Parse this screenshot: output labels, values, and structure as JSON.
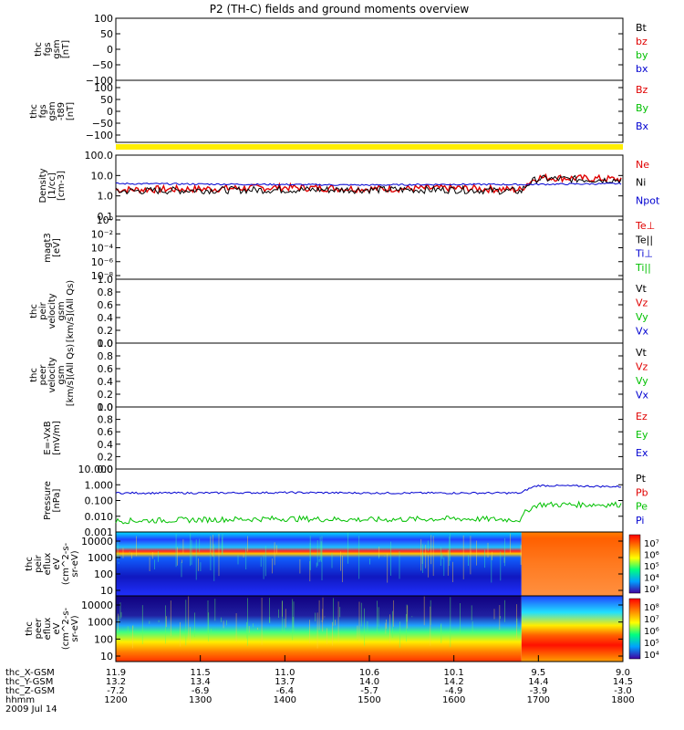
{
  "title": "P2 (TH-C) fields and ground moments overview",
  "date_label": "2009 Jul 14",
  "time_axis": {
    "row_labels": [
      "thc_X-GSM",
      "thc_Y-GSM",
      "thc_Z-GSM",
      "hhmm"
    ],
    "columns": [
      {
        "x": "11.9",
        "y": "13.2",
        "z": "-7.2",
        "t": "1200"
      },
      {
        "x": "11.5",
        "y": "13.4",
        "z": "-6.9",
        "t": "1300"
      },
      {
        "x": "11.0",
        "y": "13.7",
        "z": "-6.4",
        "t": "1400"
      },
      {
        "x": "10.6",
        "y": "14.0",
        "z": "-5.7",
        "t": "1500"
      },
      {
        "x": "10.1",
        "y": "14.2",
        "z": "-4.9",
        "t": "1600"
      },
      {
        "x": "9.5",
        "y": "14.4",
        "z": "-3.9",
        "t": "1700"
      },
      {
        "x": "9.0",
        "y": "14.5",
        "z": "-3.0",
        "t": "1800"
      }
    ],
    "start_hhmm": "1200",
    "end_hhmm": "1800"
  },
  "panels": [
    {
      "id": "fgs",
      "ylabel": [
        "thc",
        "fgs",
        "gsm",
        "[nT]"
      ],
      "ticks": [
        "100",
        "50",
        "0",
        "−50",
        "−100"
      ],
      "ylim": [
        -100,
        100
      ],
      "legend": [
        {
          "text": "Bt",
          "color": "#000000"
        },
        {
          "text": "bz",
          "color": "#e00000"
        },
        {
          "text": "by",
          "color": "#00c000"
        },
        {
          "text": "bx",
          "color": "#0000d0"
        }
      ]
    },
    {
      "id": "t89",
      "ylabel": [
        "thc",
        "fgs",
        "gsm",
        "-t89",
        "[nT]"
      ],
      "ticks": [
        "100",
        "50",
        "0",
        "−50",
        "−100"
      ],
      "ylim": [
        -120,
        120
      ],
      "legend": [
        {
          "text": "Bz",
          "color": "#e00000"
        },
        {
          "text": "By",
          "color": "#00c000"
        },
        {
          "text": "Bx",
          "color": "#0000d0"
        }
      ]
    },
    {
      "id": "density",
      "ylabel": [
        "Density",
        "[1/cc]",
        "[cm-3]"
      ],
      "ticks": [
        "100.0",
        "10.0",
        "1.0",
        "0.1"
      ],
      "ylim": [
        0.1,
        100
      ],
      "scale": "log",
      "legend": [
        {
          "text": "Ne",
          "color": "#e00000"
        },
        {
          "text": "Ni",
          "color": "#000000"
        },
        {
          "text": "Npot",
          "color": "#0000d0"
        }
      ]
    },
    {
      "id": "temp",
      "ylabel": [
        "magt3",
        "[eV]"
      ],
      "ticks": [
        "10⁰",
        "10⁻²",
        "10⁻⁴",
        "10⁻⁶",
        "10⁻⁸"
      ],
      "ylim": [
        1e-08,
        1
      ],
      "scale": "log",
      "legend": [
        {
          "text": "Te⊥",
          "color": "#e00000"
        },
        {
          "text": "Te||",
          "color": "#000000"
        },
        {
          "text": "Ti⊥",
          "color": "#0000d0"
        },
        {
          "text": "Ti||",
          "color": "#00c000"
        }
      ]
    },
    {
      "id": "vi",
      "ylabel": [
        "thc",
        "peir",
        "velocity",
        "gsm",
        "[km/s](All Qs)"
      ],
      "ticks": [
        "1.0",
        "0.8",
        "0.6",
        "0.4",
        "0.2",
        "0.0"
      ],
      "ylim": [
        0,
        1
      ],
      "legend": [
        {
          "text": "Vt",
          "color": "#000000"
        },
        {
          "text": "Vz",
          "color": "#e00000"
        },
        {
          "text": "Vy",
          "color": "#00c000"
        },
        {
          "text": "Vx",
          "color": "#0000d0"
        }
      ]
    },
    {
      "id": "ve",
      "ylabel": [
        "thc",
        "peer",
        "velocity",
        "gsm",
        "[km/s](All Qs)"
      ],
      "ticks": [
        "1.0",
        "0.8",
        "0.6",
        "0.4",
        "0.2",
        "0.0"
      ],
      "ylim": [
        0,
        1
      ],
      "legend": [
        {
          "text": "Vt",
          "color": "#000000"
        },
        {
          "text": "Vz",
          "color": "#e00000"
        },
        {
          "text": "Vy",
          "color": "#00c000"
        },
        {
          "text": "Vx",
          "color": "#0000d0"
        }
      ]
    },
    {
      "id": "efield",
      "ylabel": [
        "E=-VxB",
        "[mV/m]"
      ],
      "ticks": [
        "1.0",
        "0.8",
        "0.6",
        "0.4",
        "0.2",
        "0.0"
      ],
      "ylim": [
        0,
        1
      ],
      "legend": [
        {
          "text": "Ez",
          "color": "#e00000"
        },
        {
          "text": "Ey",
          "color": "#00c000"
        },
        {
          "text": "Ex",
          "color": "#0000d0"
        }
      ]
    },
    {
      "id": "pressure",
      "ylabel": [
        "Pressure",
        "[nPa]"
      ],
      "ticks": [
        "10.000",
        "1.000",
        "0.100",
        "0.010",
        "0.001"
      ],
      "ylim": [
        0.001,
        10
      ],
      "scale": "log",
      "legend": [
        {
          "text": "Pt",
          "color": "#000000"
        },
        {
          "text": "Pb",
          "color": "#e00000"
        },
        {
          "text": "Pe",
          "color": "#00c000"
        },
        {
          "text": "Pi",
          "color": "#0000d0"
        }
      ]
    },
    {
      "id": "peir_spec",
      "ylabel": [
        "thc",
        "peir",
        "eflux",
        "eV",
        "(cm^2-s-",
        "sr-eV)"
      ],
      "ticks": [
        "10000",
        "1000",
        "100",
        "10"
      ],
      "ylim": [
        5,
        20000
      ],
      "scale": "log",
      "colorbar": [
        "10⁷",
        "10⁶",
        "10⁵",
        "10⁴",
        "10³"
      ]
    },
    {
      "id": "peer_spec",
      "ylabel": [
        "thc",
        "peer",
        "eflux",
        "eV",
        "(cm^2-s-",
        "sr-eV)"
      ],
      "ticks": [
        "10000",
        "1000",
        "100",
        "10"
      ],
      "ylim": [
        5,
        20000
      ],
      "scale": "log",
      "colorbar": [
        "10⁸",
        "10⁷",
        "10⁶",
        "10⁵",
        "10⁴"
      ]
    }
  ],
  "chart_data": [
    {
      "type": "line",
      "panel": "density",
      "x_hhmm": [
        "1200",
        "1300",
        "1400",
        "1500",
        "1600",
        "1648",
        "1700",
        "1800"
      ],
      "series": [
        {
          "name": "Ne",
          "values": [
            2.0,
            2.2,
            2.6,
            2.2,
            2.4,
            2.0,
            8.0,
            6.5
          ]
        },
        {
          "name": "Ni",
          "values": [
            1.7,
            1.9,
            2.0,
            2.0,
            2.0,
            1.7,
            7.0,
            6.0
          ]
        },
        {
          "name": "Npot",
          "values": [
            4.0,
            3.8,
            3.6,
            3.4,
            3.7,
            3.6,
            3.7,
            4.0
          ]
        }
      ]
    },
    {
      "type": "line",
      "panel": "pressure",
      "x_hhmm": [
        "1200",
        "1300",
        "1400",
        "1500",
        "1600",
        "1648",
        "1700",
        "1800"
      ],
      "series": [
        {
          "name": "Pi",
          "values": [
            0.3,
            0.3,
            0.32,
            0.3,
            0.3,
            0.3,
            0.9,
            0.75
          ]
        },
        {
          "name": "Pe",
          "values": [
            0.005,
            0.006,
            0.007,
            0.006,
            0.007,
            0.006,
            0.055,
            0.055
          ]
        }
      ]
    },
    {
      "type": "heatmap",
      "panel": "peir_spec",
      "description_bands_eV": [
        2000,
        3000
      ],
      "transition_hhmm": "1648"
    },
    {
      "type": "heatmap",
      "panel": "peer_spec",
      "transition_hhmm": "1648"
    }
  ]
}
